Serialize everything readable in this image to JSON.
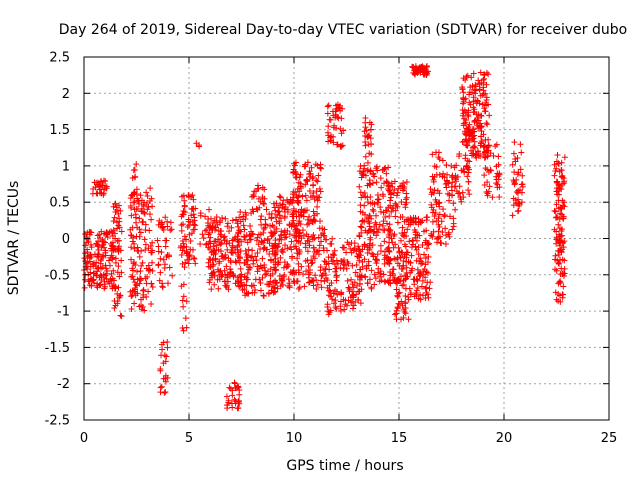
{
  "chart_data": {
    "type": "scatter",
    "title": "Day 264 of 2019, Sidereal Day-to-day VTEC variation (SDTVAR) for receiver dubo",
    "xlabel": "GPS time / hours",
    "ylabel": "SDTVAR / TECUs",
    "xlim": [
      0,
      25
    ],
    "ylim": [
      -2.5,
      2.5
    ],
    "xticks": [
      "0",
      "5",
      "10",
      "15",
      "20",
      "25"
    ],
    "yticks": [
      "-2.5",
      "-2",
      "-1.5",
      "-1",
      "-0.5",
      "0",
      "0.5",
      "1",
      "1.5",
      "2",
      "2.5"
    ],
    "grid": true,
    "marker": "+",
    "marker_color": "#ff0000",
    "series": [
      {
        "name": "SDTVAR",
        "clusters": [
          {
            "x": [
              0.0,
              1.5
            ],
            "y": [
              -0.7,
              0.1
            ],
            "n": 160
          },
          {
            "x": [
              0.4,
              1.1
            ],
            "y": [
              0.6,
              0.8
            ],
            "n": 30
          },
          {
            "x": [
              1.4,
              1.8
            ],
            "y": [
              -1.1,
              0.5
            ],
            "n": 50
          },
          {
            "x": [
              2.2,
              3.3
            ],
            "y": [
              -1.0,
              0.7
            ],
            "n": 140
          },
          {
            "x": [
              2.3,
              2.5
            ],
            "y": [
              0.8,
              1.05
            ],
            "n": 6
          },
          {
            "x": [
              3.5,
              4.2
            ],
            "y": [
              -0.7,
              0.3
            ],
            "n": 40
          },
          {
            "x": [
              3.6,
              4.0
            ],
            "y": [
              -2.15,
              -1.4
            ],
            "n": 22
          },
          {
            "x": [
              4.6,
              5.3
            ],
            "y": [
              -0.4,
              0.6
            ],
            "n": 70
          },
          {
            "x": [
              4.6,
              4.9
            ],
            "y": [
              -1.35,
              -0.6
            ],
            "n": 10
          },
          {
            "x": [
              5.3,
              5.5
            ],
            "y": [
              1.26,
              1.32
            ],
            "n": 3
          },
          {
            "x": [
              5.5,
              6.0
            ],
            "y": [
              -0.1,
              0.4
            ],
            "n": 15
          },
          {
            "x": [
              5.9,
              7.5
            ],
            "y": [
              -0.7,
              0.3
            ],
            "n": 160
          },
          {
            "x": [
              6.8,
              7.4
            ],
            "y": [
              -2.35,
              -1.98
            ],
            "n": 30
          },
          {
            "x": [
              7.3,
              9.2
            ],
            "y": [
              -0.8,
              0.4
            ],
            "n": 180
          },
          {
            "x": [
              8.0,
              8.7
            ],
            "y": [
              0.4,
              0.75
            ],
            "n": 20
          },
          {
            "x": [
              9.0,
              10.3
            ],
            "y": [
              -0.7,
              0.6
            ],
            "n": 150
          },
          {
            "x": [
              9.9,
              11.3
            ],
            "y": [
              0.3,
              1.05
            ],
            "n": 90
          },
          {
            "x": [
              10.2,
              11.5
            ],
            "y": [
              -0.7,
              0.3
            ],
            "n": 90
          },
          {
            "x": [
              11.5,
              12.1
            ],
            "y": [
              -1.05,
              0.0
            ],
            "n": 55
          },
          {
            "x": [
              11.6,
              12.4
            ],
            "y": [
              1.25,
              1.85
            ],
            "n": 45
          },
          {
            "x": [
              12.2,
              13.2
            ],
            "y": [
              -1.0,
              -0.05
            ],
            "n": 80
          },
          {
            "x": [
              13.1,
              14.6
            ],
            "y": [
              -0.7,
              1.0
            ],
            "n": 200
          },
          {
            "x": [
              13.3,
              13.7
            ],
            "y": [
              1.0,
              1.75
            ],
            "n": 25
          },
          {
            "x": [
              14.5,
              15.4
            ],
            "y": [
              -0.6,
              0.8
            ],
            "n": 110
          },
          {
            "x": [
              14.8,
              15.5
            ],
            "y": [
              -1.12,
              -0.5
            ],
            "n": 40
          },
          {
            "x": [
              15.4,
              16.5
            ],
            "y": [
              -0.85,
              0.3
            ],
            "n": 110
          },
          {
            "x": [
              15.6,
              16.4
            ],
            "y": [
              2.25,
              2.38
            ],
            "n": 45
          },
          {
            "x": [
              16.5,
              17.7
            ],
            "y": [
              -0.1,
              1.2
            ],
            "n": 90
          },
          {
            "x": [
              17.5,
              18.4
            ],
            "y": [
              0.5,
              1.25
            ],
            "n": 40
          },
          {
            "x": [
              18.0,
              19.3
            ],
            "y": [
              1.1,
              2.3
            ],
            "n": 180
          },
          {
            "x": [
              19.0,
              19.8
            ],
            "y": [
              0.55,
              1.3
            ],
            "n": 35
          },
          {
            "x": [
              20.4,
              20.9
            ],
            "y": [
              0.3,
              1.35
            ],
            "n": 40
          },
          {
            "x": [
              22.4,
              22.9
            ],
            "y": [
              -0.9,
              1.15
            ],
            "n": 120
          }
        ]
      }
    ]
  }
}
